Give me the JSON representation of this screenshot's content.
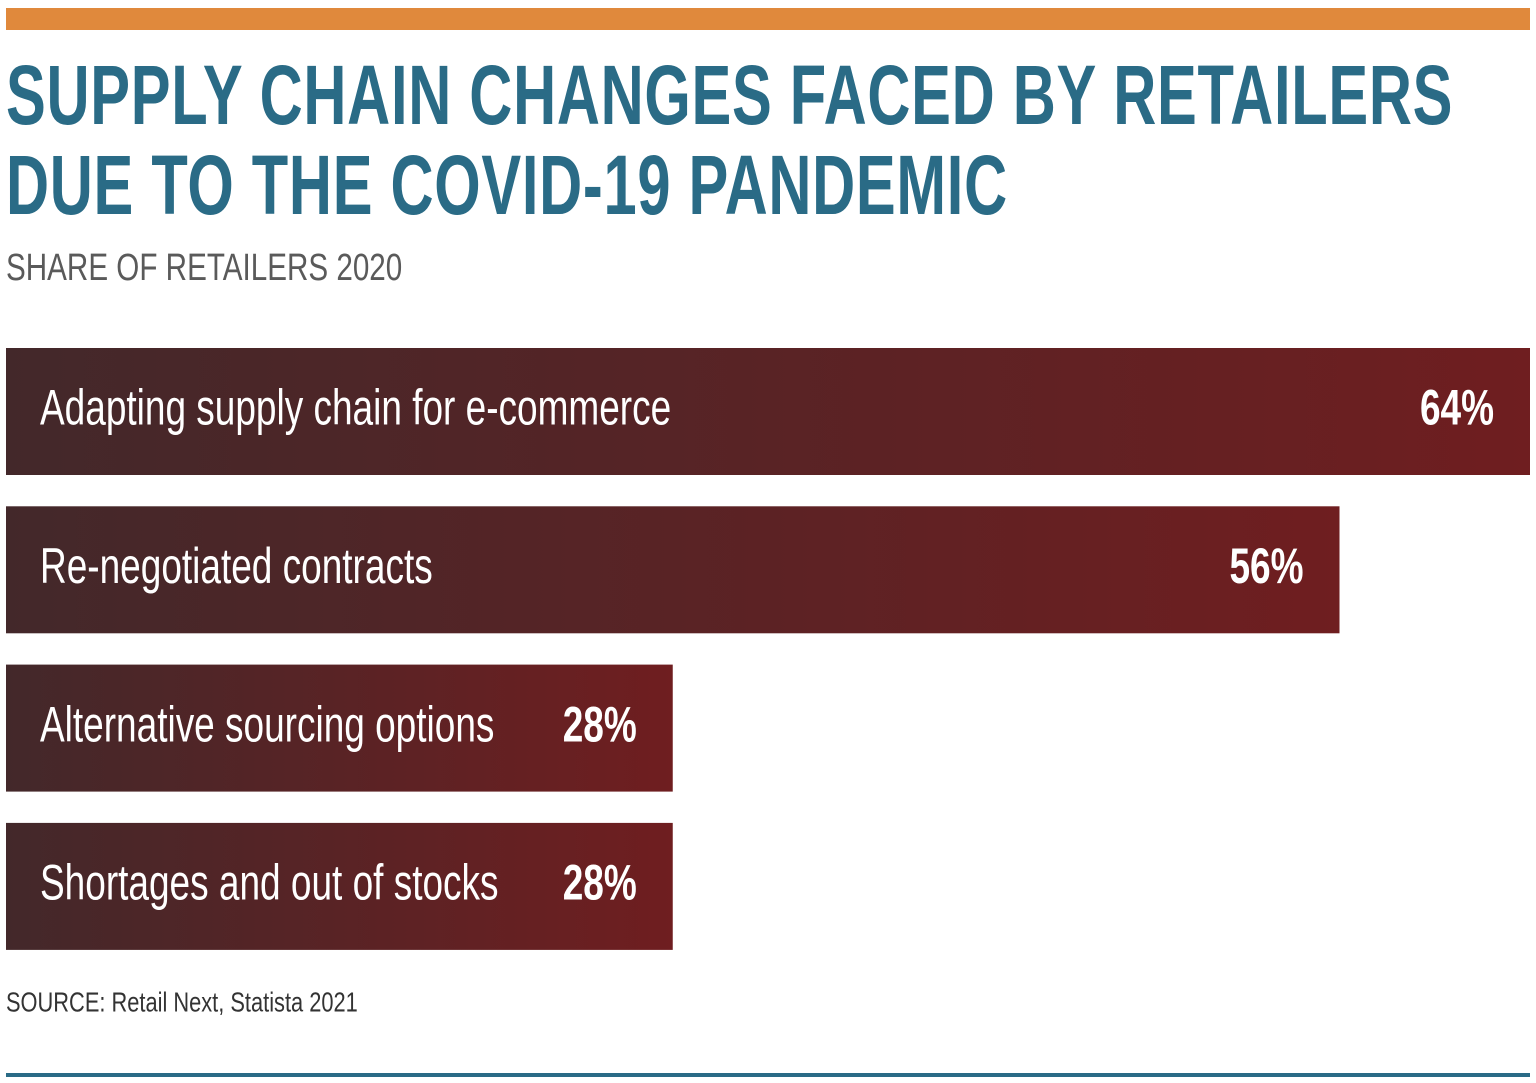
{
  "chart_data": {
    "type": "bar",
    "orientation": "horizontal",
    "title": "SUPPLY CHAIN CHANGES FACED BY RETAILERS DUE TO THE COVID-19 PANDEMIC",
    "subtitle": "SHARE OF RETAILERS 2020",
    "categories": [
      "Adapting supply chain for e-commerce",
      "Re-negotiated contracts",
      "Alternative sourcing options",
      "Shortages and out of stocks"
    ],
    "values": [
      64,
      56,
      28,
      28
    ],
    "value_labels": [
      "64%",
      "56%",
      "28%",
      "28%"
    ],
    "color": "#6f1e20",
    "source": "SOURCE: Retail Next, Statista 2021"
  }
}
